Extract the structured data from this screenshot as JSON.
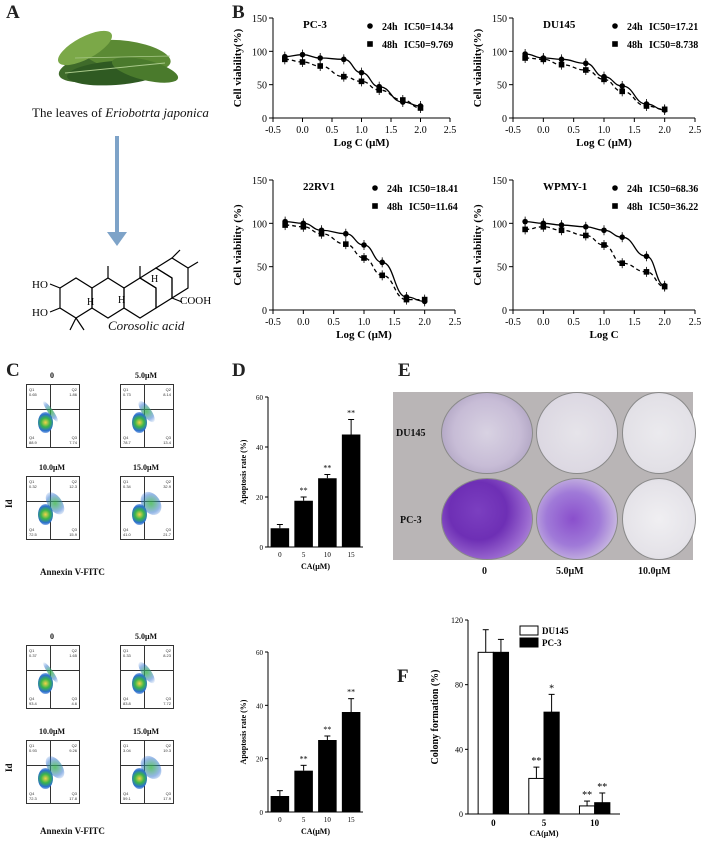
{
  "panels": {
    "A": {
      "letter": "A",
      "caption_prefix": "The leaves of ",
      "caption_species": "Eriobotrta japonica",
      "compound_name": "Corosolic acid",
      "chem_labels": [
        "HO",
        "HO",
        "H",
        "H",
        "H",
        "COOH"
      ]
    },
    "B": {
      "letter": "B"
    },
    "C": {
      "letter": "C",
      "x_axis_label": "Annexin V-FITC",
      "y_axis_label": "Id",
      "concentrations": [
        "0",
        "5.0μM",
        "10.0μM",
        "15.0μM"
      ],
      "plots": [
        {
          "q1": "0.65",
          "q2": "1.86",
          "q4": "88.9",
          "q3": "7.74"
        },
        {
          "q1": "0.73",
          "q2": "8.14",
          "q4": "78.7",
          "q3": "13.4"
        },
        {
          "q1": "0.32",
          "q2": "12.3",
          "q4": "72.5",
          "q3": "15.9"
        },
        {
          "q1": "0.34",
          "q2": "32.9",
          "q4": "41.0",
          "q3": "21.7"
        },
        {
          "q1": "0.37",
          "q2": "1.65",
          "q4": "93.4",
          "q3": "4.6"
        },
        {
          "q1": "0.33",
          "q2": "8.23",
          "q4": "83.8",
          "q3": "7.72"
        },
        {
          "q1": "0.93",
          "q2": "9.26",
          "q4": "72.3",
          "q3": "17.8"
        },
        {
          "q1": "3.04",
          "q2": "19.3",
          "q4": "59.1",
          "q3": "17.9"
        }
      ],
      "channel_x": "Comp-FL1-H :: FL1-H",
      "channel_y": "Comp-FL3-H :: FL3-H"
    },
    "D": {
      "letter": "D"
    },
    "E": {
      "letter": "E",
      "row_labels": [
        "DU145",
        "PC-3"
      ],
      "col_labels": [
        "0",
        "5.0μM",
        "10.0μM"
      ]
    },
    "F": {
      "letter": "F"
    }
  },
  "chart_data": [
    {
      "id": "B-PC3",
      "type": "scatter",
      "title": "PC-3",
      "xlabel": "Log C (μM)",
      "ylabel": "Cell viability(%)",
      "xlim": [
        -0.5,
        2.5
      ],
      "ylim": [
        0,
        150
      ],
      "xticks": [
        -0.5,
        0.0,
        0.5,
        1.0,
        1.5,
        2.0,
        2.5
      ],
      "yticks": [
        0,
        50,
        100,
        150
      ],
      "x": [
        -0.3,
        0.0,
        0.3,
        0.7,
        1.0,
        1.3,
        1.7,
        2.0
      ],
      "series": [
        {
          "name": "24h",
          "ic50_label": "IC50=14.34",
          "values": [
            92,
            95,
            90,
            88,
            68,
            47,
            24,
            18
          ]
        },
        {
          "name": "48h",
          "ic50_label": "IC50=9.769",
          "values": [
            88,
            84,
            78,
            62,
            55,
            42,
            27,
            15
          ]
        }
      ]
    },
    {
      "id": "B-DU145",
      "type": "scatter",
      "title": "DU145",
      "xlabel": "Log C (μM)",
      "ylabel": "Cell viability(%)",
      "xlim": [
        -0.5,
        2.5
      ],
      "ylim": [
        0,
        150
      ],
      "xticks": [
        -0.5,
        0.0,
        0.5,
        1.0,
        1.5,
        2.0,
        2.5
      ],
      "yticks": [
        0,
        50,
        100,
        150
      ],
      "x": [
        -0.3,
        0.0,
        0.3,
        0.7,
        1.0,
        1.3,
        1.7,
        2.0
      ],
      "series": [
        {
          "name": "24h",
          "ic50_label": "IC50=17.21",
          "values": [
            96,
            90,
            88,
            82,
            62,
            48,
            21,
            12
          ]
        },
        {
          "name": "48h",
          "ic50_label": "IC50=8.738",
          "values": [
            90,
            88,
            80,
            72,
            58,
            40,
            18,
            13
          ]
        }
      ]
    },
    {
      "id": "B-22RV1",
      "type": "scatter",
      "title": "22RV1",
      "xlabel": "Log C (μM)",
      "ylabel": "Cell viability (%)",
      "xlim": [
        -0.5,
        2.5
      ],
      "ylim": [
        0,
        150
      ],
      "xticks": [
        -0.5,
        0.0,
        0.5,
        1.0,
        1.5,
        2.0,
        2.5
      ],
      "yticks": [
        0,
        50,
        100,
        150
      ],
      "x": [
        -0.3,
        0.0,
        0.3,
        0.7,
        1.0,
        1.3,
        1.7,
        2.0
      ],
      "series": [
        {
          "name": "24h",
          "ic50_label": "IC50=18.41",
          "values": [
            102,
            100,
            92,
            88,
            75,
            55,
            15,
            10
          ]
        },
        {
          "name": "48h",
          "ic50_label": "IC50=11.64",
          "values": [
            98,
            96,
            88,
            76,
            60,
            40,
            12,
            12
          ]
        }
      ]
    },
    {
      "id": "B-WPMY1",
      "type": "scatter",
      "title": "WPMY-1",
      "xlabel": "Log C",
      "ylabel": "Cell viability (%)",
      "xlim": [
        -0.5,
        2.5
      ],
      "ylim": [
        0,
        150
      ],
      "xticks": [
        -0.5,
        0.0,
        0.5,
        1.0,
        1.5,
        2.0,
        2.5
      ],
      "yticks": [
        0,
        50,
        100,
        150
      ],
      "x": [
        -0.3,
        0.0,
        0.3,
        0.7,
        1.0,
        1.3,
        1.7,
        2.0
      ],
      "series": [
        {
          "name": "24h",
          "ic50_label": "IC50=68.36",
          "values": [
            102,
            100,
            98,
            96,
            92,
            84,
            62,
            28
          ]
        },
        {
          "name": "48h",
          "ic50_label": "IC50=36.22",
          "values": [
            93,
            96,
            92,
            86,
            75,
            54,
            44,
            27
          ]
        }
      ]
    },
    {
      "id": "D-top",
      "type": "bar",
      "xlabel": "CA(μM)",
      "ylabel": "Apoptosis rate (%)",
      "ylim": [
        0,
        60
      ],
      "yticks": [
        0,
        20,
        40,
        60
      ],
      "categories": [
        "0",
        "5",
        "10",
        "15"
      ],
      "values": [
        7.5,
        18.5,
        27.5,
        45.0
      ],
      "errors": [
        1.5,
        1.5,
        1.5,
        6.0
      ],
      "annotations": [
        "",
        "**",
        "**",
        "**"
      ]
    },
    {
      "id": "D-bottom",
      "type": "bar",
      "xlabel": "CA(μM)",
      "ylabel": "Apoptosis rate (%)",
      "ylim": [
        0,
        60
      ],
      "yticks": [
        0,
        20,
        40,
        60
      ],
      "categories": [
        "0",
        "5",
        "10",
        "15"
      ],
      "values": [
        6.0,
        15.5,
        27.0,
        37.5
      ],
      "errors": [
        2.0,
        2.0,
        1.5,
        5.0
      ],
      "annotations": [
        "",
        "**",
        "**",
        "**"
      ]
    },
    {
      "id": "F",
      "type": "bar",
      "xlabel": "CA(μM)",
      "ylabel": "Colony formation (%)",
      "ylim": [
        0,
        120
      ],
      "yticks": [
        0,
        40,
        80,
        120
      ],
      "categories": [
        "0",
        "5",
        "10"
      ],
      "series": [
        {
          "name": "DU145",
          "color": "#ffffff",
          "values": [
            100,
            22,
            5
          ],
          "errors": [
            14,
            7,
            3
          ],
          "annotations": [
            "",
            "**",
            "**"
          ]
        },
        {
          "name": "PC-3",
          "color": "#000000",
          "values": [
            100,
            63,
            7
          ],
          "errors": [
            8,
            11,
            6
          ],
          "annotations": [
            "",
            "*",
            "**"
          ]
        }
      ]
    }
  ]
}
